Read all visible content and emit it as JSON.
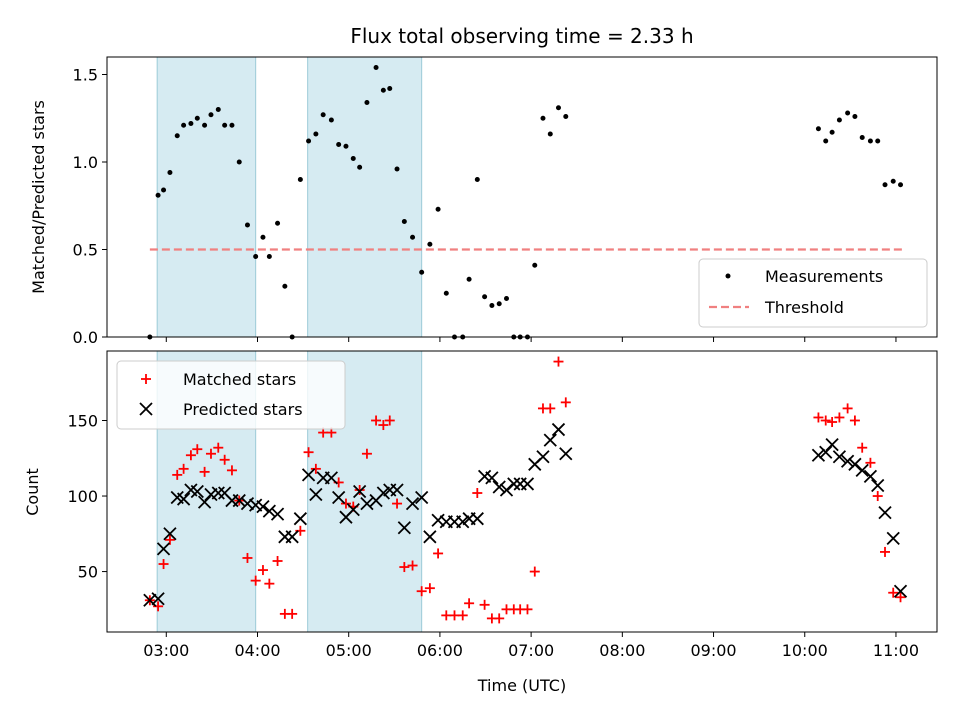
{
  "chart_data": {
    "type": "scatter",
    "title": "Flux total observing time = 2.33 h",
    "xlabel": "Time (UTC)",
    "x_unit": "hours UTC",
    "xlim": [
      2.35,
      11.45
    ],
    "x_ticks": [
      3,
      4,
      5,
      6,
      7,
      8,
      9,
      10,
      11
    ],
    "x_tick_labels": [
      "03:00",
      "04:00",
      "05:00",
      "06:00",
      "07:00",
      "08:00",
      "09:00",
      "10:00",
      "11:00"
    ],
    "shaded_intervals": [
      [
        2.9,
        3.98
      ],
      [
        4.55,
        5.8
      ]
    ],
    "top": {
      "ylabel": "Matched/Predicted stars",
      "ylim": [
        0,
        1.6
      ],
      "y_ticks": [
        0.0,
        0.5,
        1.0,
        1.5
      ],
      "y_tick_labels": [
        "0.0",
        "0.5",
        "1.0",
        "1.5"
      ],
      "legend": {
        "position": "lower-right",
        "measurements_label": "Measurements",
        "threshold_label": "Threshold"
      },
      "threshold": {
        "value": 0.5,
        "x_range": [
          2.82,
          11.08
        ],
        "color": "#f08080"
      },
      "measurements": {
        "x": [
          2.82,
          2.91,
          2.97,
          3.04,
          3.12,
          3.19,
          3.27,
          3.34,
          3.42,
          3.49,
          3.57,
          3.64,
          3.72,
          3.8,
          3.89,
          3.98,
          4.06,
          4.13,
          4.22,
          4.3,
          4.38,
          4.47,
          4.56,
          4.64,
          4.72,
          4.81,
          4.89,
          4.97,
          5.05,
          5.12,
          5.2,
          5.3,
          5.38,
          5.45,
          5.53,
          5.61,
          5.7,
          5.8,
          5.89,
          5.98,
          6.07,
          6.16,
          6.25,
          6.32,
          6.41,
          6.49,
          6.57,
          6.65,
          6.73,
          6.81,
          6.88,
          6.96,
          7.04,
          7.13,
          7.21,
          7.3,
          7.38,
          10.15,
          10.23,
          10.3,
          10.38,
          10.47,
          10.55,
          10.63,
          10.72,
          10.8,
          10.88,
          10.97,
          11.05
        ],
        "y": [
          0.0,
          0.81,
          0.84,
          0.94,
          1.15,
          1.21,
          1.22,
          1.25,
          1.21,
          1.27,
          1.3,
          1.21,
          1.21,
          1.0,
          0.64,
          0.46,
          0.57,
          0.46,
          0.65,
          0.29,
          0.0,
          0.9,
          1.12,
          1.16,
          1.27,
          1.24,
          1.1,
          1.09,
          1.02,
          0.97,
          1.34,
          1.54,
          1.41,
          1.42,
          0.96,
          0.66,
          0.57,
          0.37,
          0.53,
          0.73,
          0.25,
          0.0,
          0.0,
          0.33,
          0.9,
          0.23,
          0.18,
          0.19,
          0.22,
          0.0,
          0.0,
          0.0,
          0.41,
          1.25,
          1.16,
          1.31,
          1.26,
          1.19,
          1.12,
          1.17,
          1.24,
          1.28,
          1.26,
          1.14,
          1.12,
          1.12,
          0.87,
          0.89,
          0.87
        ],
        "color": "#000000"
      }
    },
    "bottom": {
      "ylabel": "Count",
      "ylim": [
        10,
        196
      ],
      "y_ticks": [
        50,
        100,
        150
      ],
      "y_tick_labels": [
        "50",
        "100",
        "150"
      ],
      "legend": {
        "position": "upper-left",
        "matched_label": "Matched stars",
        "predicted_label": "Predicted stars"
      },
      "matched": {
        "x": [
          2.82,
          2.91,
          2.97,
          3.04,
          3.12,
          3.19,
          3.27,
          3.34,
          3.42,
          3.49,
          3.57,
          3.64,
          3.72,
          3.8,
          3.89,
          3.98,
          4.06,
          4.13,
          4.22,
          4.3,
          4.38,
          4.47,
          4.56,
          4.64,
          4.72,
          4.81,
          4.89,
          4.97,
          5.05,
          5.12,
          5.2,
          5.3,
          5.38,
          5.45,
          5.53,
          5.61,
          5.7,
          5.8,
          5.89,
          5.98,
          6.07,
          6.16,
          6.25,
          6.32,
          6.41,
          6.49,
          6.57,
          6.65,
          6.73,
          6.81,
          6.88,
          6.96,
          7.04,
          7.13,
          7.21,
          7.3,
          7.38,
          10.15,
          10.23,
          10.3,
          10.38,
          10.47,
          10.55,
          10.63,
          10.72,
          10.8,
          10.88,
          10.97,
          11.05
        ],
        "y": [
          31,
          27,
          55,
          71,
          114,
          118,
          127,
          131,
          116,
          128,
          132,
          124,
          117,
          97,
          59,
          44,
          51,
          42,
          57,
          22,
          22,
          77,
          129,
          118,
          142,
          142,
          109,
          95,
          93,
          104,
          128,
          150,
          147,
          150,
          95,
          53,
          54,
          37,
          39,
          62,
          21,
          21,
          21,
          29,
          102,
          28,
          19,
          19,
          25,
          25,
          25,
          25,
          50,
          158,
          158,
          189,
          162,
          152,
          150,
          149,
          152,
          158,
          150,
          132,
          122,
          100,
          63,
          36,
          33
        ],
        "color": "#ff0000"
      },
      "predicted": {
        "x": [
          2.82,
          2.91,
          2.97,
          3.04,
          3.12,
          3.19,
          3.27,
          3.34,
          3.42,
          3.49,
          3.57,
          3.64,
          3.72,
          3.8,
          3.89,
          3.98,
          4.06,
          4.13,
          4.22,
          4.3,
          4.38,
          4.47,
          4.56,
          4.64,
          4.72,
          4.81,
          4.89,
          4.97,
          5.05,
          5.12,
          5.2,
          5.3,
          5.38,
          5.45,
          5.53,
          5.61,
          5.7,
          5.8,
          5.89,
          5.98,
          6.07,
          6.16,
          6.25,
          6.32,
          6.41,
          6.49,
          6.57,
          6.65,
          6.73,
          6.81,
          6.88,
          6.96,
          7.04,
          7.13,
          7.21,
          7.3,
          7.38,
          10.15,
          10.23,
          10.3,
          10.38,
          10.47,
          10.55,
          10.63,
          10.72,
          10.8,
          10.88,
          10.97,
          11.05
        ],
        "y": [
          31,
          32,
          65,
          75,
          99,
          98,
          104,
          103,
          96,
          101,
          102,
          102,
          97,
          97,
          95,
          94,
          93,
          90,
          88,
          73,
          73,
          85,
          114,
          101,
          112,
          112,
          99,
          86,
          91,
          103,
          95,
          97,
          102,
          104,
          104,
          79,
          95,
          99,
          73,
          84,
          83,
          83,
          83,
          85,
          85,
          113,
          112,
          106,
          104,
          108,
          108,
          108,
          121,
          126,
          137,
          144,
          128,
          127,
          129,
          134,
          126,
          123,
          121,
          117,
          113,
          107,
          89,
          72,
          37
        ],
        "color": "#000000"
      }
    }
  }
}
